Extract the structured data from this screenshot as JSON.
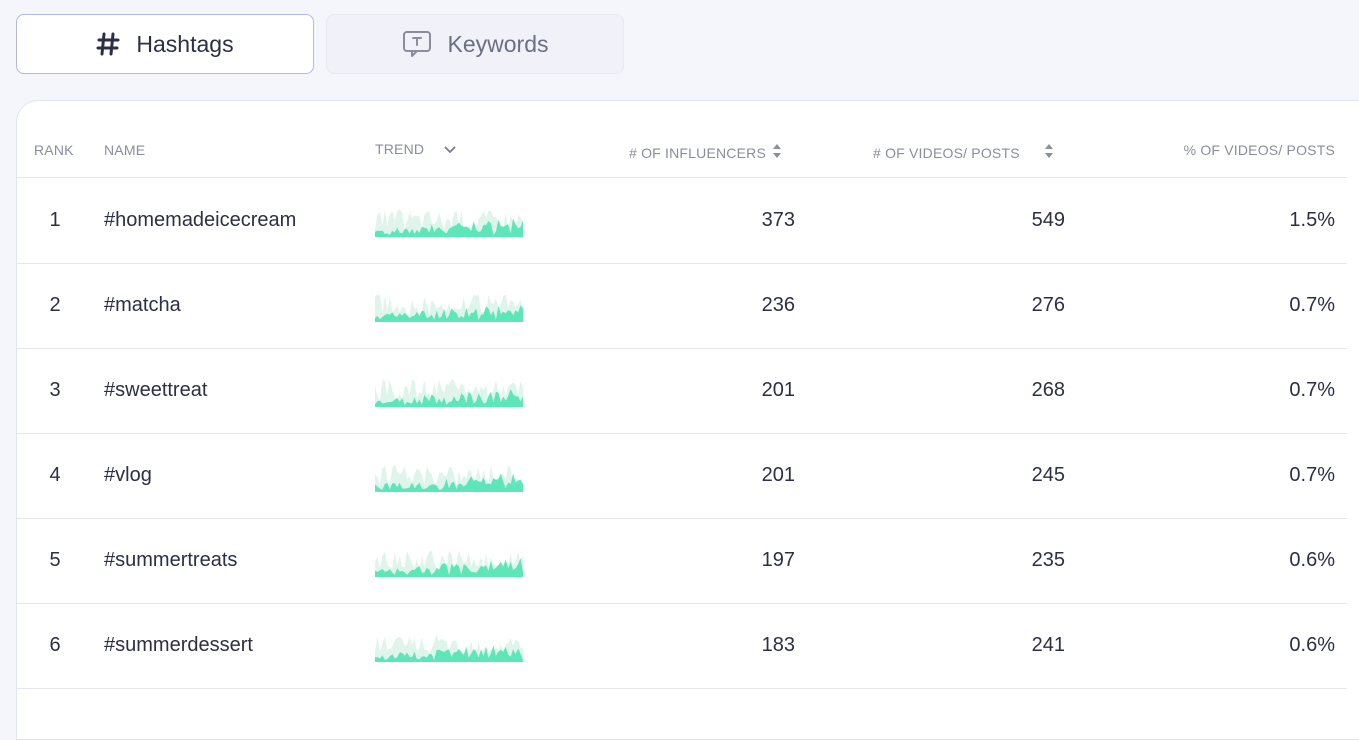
{
  "tabs": [
    {
      "label": "Hashtags",
      "icon": "hash-icon",
      "active": true
    },
    {
      "label": "Keywords",
      "icon": "keyword-bubble-icon",
      "active": false
    }
  ],
  "table": {
    "columns": {
      "rank": "RANK",
      "name": "NAME",
      "trend": "TREND",
      "influencers": "# OF INFLUENCERS",
      "videos": "# OF VIDEOS/ POSTS",
      "percent": "% OF VIDEOS/ POSTS"
    },
    "rows": [
      {
        "rank": "1",
        "name": "#homemadeicecream",
        "influencers": "373",
        "videos": "549",
        "percent": "1.5%"
      },
      {
        "rank": "2",
        "name": "#matcha",
        "influencers": "236",
        "videos": "276",
        "percent": "0.7%"
      },
      {
        "rank": "3",
        "name": "#sweettreat",
        "influencers": "201",
        "videos": "268",
        "percent": "0.7%"
      },
      {
        "rank": "4",
        "name": "#vlog",
        "influencers": "201",
        "videos": "245",
        "percent": "0.7%"
      },
      {
        "rank": "5",
        "name": "#summertreats",
        "influencers": "197",
        "videos": "235",
        "percent": "0.6%"
      },
      {
        "rank": "6",
        "name": "#summerdessert",
        "influencers": "183",
        "videos": "241",
        "percent": "0.6%"
      }
    ]
  },
  "colors": {
    "accent": "#4fe6b4",
    "accent_light": "#dff5ec",
    "active_tab_border": "#b3b8e0"
  }
}
